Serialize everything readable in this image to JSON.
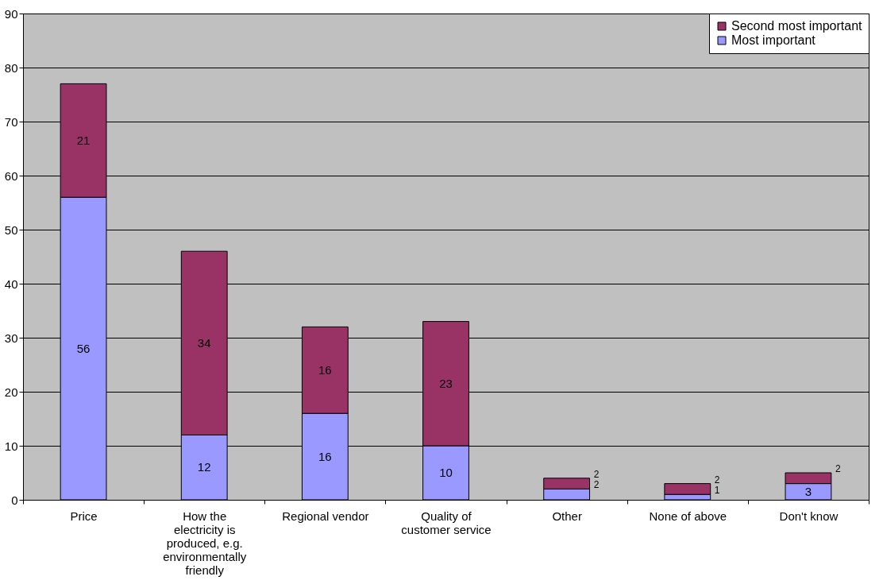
{
  "chart_data": {
    "type": "bar",
    "stacked": true,
    "categories": [
      "Price",
      "How the electricity is produced, e.g. environmentally friendly",
      "Regional vendor",
      "Quality of customer service",
      "Other",
      "None of above",
      "Don't know"
    ],
    "series": [
      {
        "name": "Most important",
        "color": "#9999ff",
        "values": [
          56,
          12,
          16,
          10,
          2,
          1,
          3
        ]
      },
      {
        "name": "Second most important",
        "color": "#993366",
        "values": [
          21,
          34,
          16,
          23,
          2,
          2,
          2
        ]
      }
    ],
    "ylim": [
      0,
      90
    ],
    "yticks": [
      0,
      10,
      20,
      30,
      40,
      50,
      60,
      70,
      80,
      90
    ],
    "grid": "y",
    "legend": "top right",
    "data_labels": true
  }
}
